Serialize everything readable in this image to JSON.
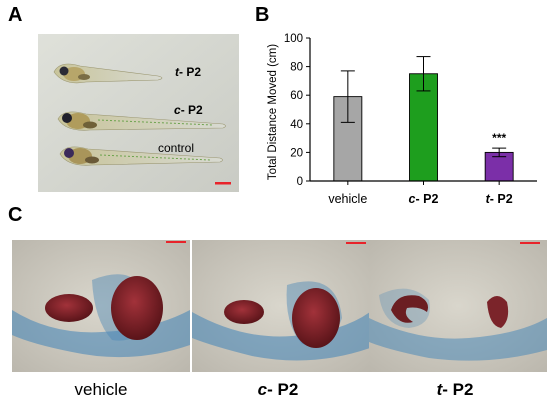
{
  "panels": {
    "a": "A",
    "b": "B",
    "c": "C"
  },
  "panel_a": {
    "labels": [
      {
        "prefix": "t",
        "suffix": "- P2"
      },
      {
        "prefix": "c",
        "suffix": "- P2"
      },
      {
        "prefix": "",
        "suffix": "control"
      }
    ],
    "scale_bar_color": "#e8232a"
  },
  "chart_data": {
    "type": "bar",
    "categories": [
      {
        "prefix": "",
        "suffix": "vehicle"
      },
      {
        "prefix": "c",
        "suffix": "- P2"
      },
      {
        "prefix": "t",
        "suffix": "- P2"
      }
    ],
    "values": [
      59,
      75,
      20
    ],
    "error": [
      18,
      12,
      3
    ],
    "colors": [
      "#a6a6a6",
      "#1e9e1e",
      "#7b2fa8"
    ],
    "ylabel": "Total Distance Moved (cm)",
    "ylim": [
      0,
      100
    ],
    "yticks": [
      0,
      20,
      40,
      60,
      80,
      100
    ],
    "annotations": [
      {
        "category_index": 2,
        "text": "***"
      }
    ]
  },
  "panel_c": {
    "labels": [
      {
        "prefix": "",
        "suffix": "vehicle"
      },
      {
        "prefix": "c",
        "suffix": "- P2"
      },
      {
        "prefix": "t",
        "suffix": "- P2"
      }
    ],
    "scale_bar_color": "#e8232a"
  }
}
